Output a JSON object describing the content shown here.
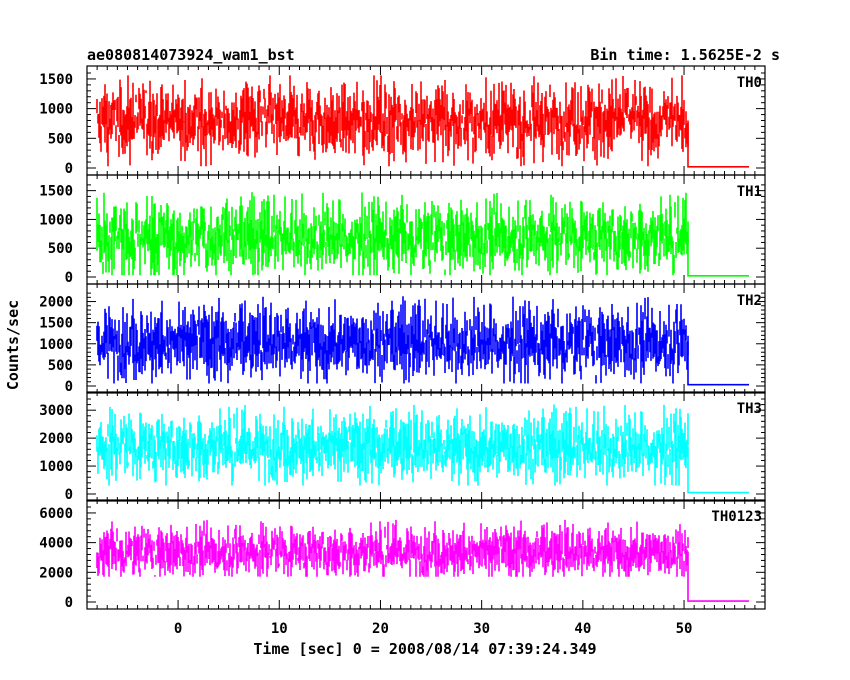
{
  "chart_data": {
    "type": "line",
    "title": "ae080814073924_wam1_bst",
    "bin_time": "Bin time: 1.5625E-2 s",
    "xlabel": "Time [sec] 0 = 2008/08/14 07:39:24.349",
    "ylabel": "Counts/sec",
    "xlim": [
      -9,
      58
    ],
    "x_ticks": [
      0,
      10,
      20,
      30,
      40,
      50
    ],
    "data_start": -8,
    "data_end": 50.4,
    "tail_end": 56.4,
    "panels": [
      {
        "label": "TH0",
        "color": "#ff0000",
        "ylim": [
          0,
          1600
        ],
        "y_ticks": [
          0,
          500,
          1000,
          1500
        ],
        "mean": 800,
        "low": 30,
        "high": 1560,
        "tail_level": 20
      },
      {
        "label": "TH1",
        "color": "#00ff00",
        "ylim": [
          0,
          1650
        ],
        "y_ticks": [
          0,
          500,
          1000,
          1500
        ],
        "mean": 700,
        "low": 30,
        "high": 1570,
        "tail_level": 20
      },
      {
        "label": "TH2",
        "color": "#0000ff",
        "ylim": [
          0,
          2250
        ],
        "y_ticks": [
          0,
          500,
          1000,
          1500,
          2000
        ],
        "mean": 1050,
        "low": 60,
        "high": 2200,
        "tail_level": 30
      },
      {
        "label": "TH3",
        "color": "#00ffff",
        "ylim": [
          0,
          3400
        ],
        "y_ticks": [
          0,
          1000,
          2000,
          3000
        ],
        "mean": 1700,
        "low": 300,
        "high": 3300,
        "tail_level": 50
      },
      {
        "label": "TH0123",
        "color": "#ff00ff",
        "ylim": [
          0,
          6400
        ],
        "y_ticks": [
          0,
          2000,
          4000,
          6000
        ],
        "mean": 3400,
        "low": 1700,
        "high": 6000,
        "tail_level": 60
      }
    ]
  }
}
